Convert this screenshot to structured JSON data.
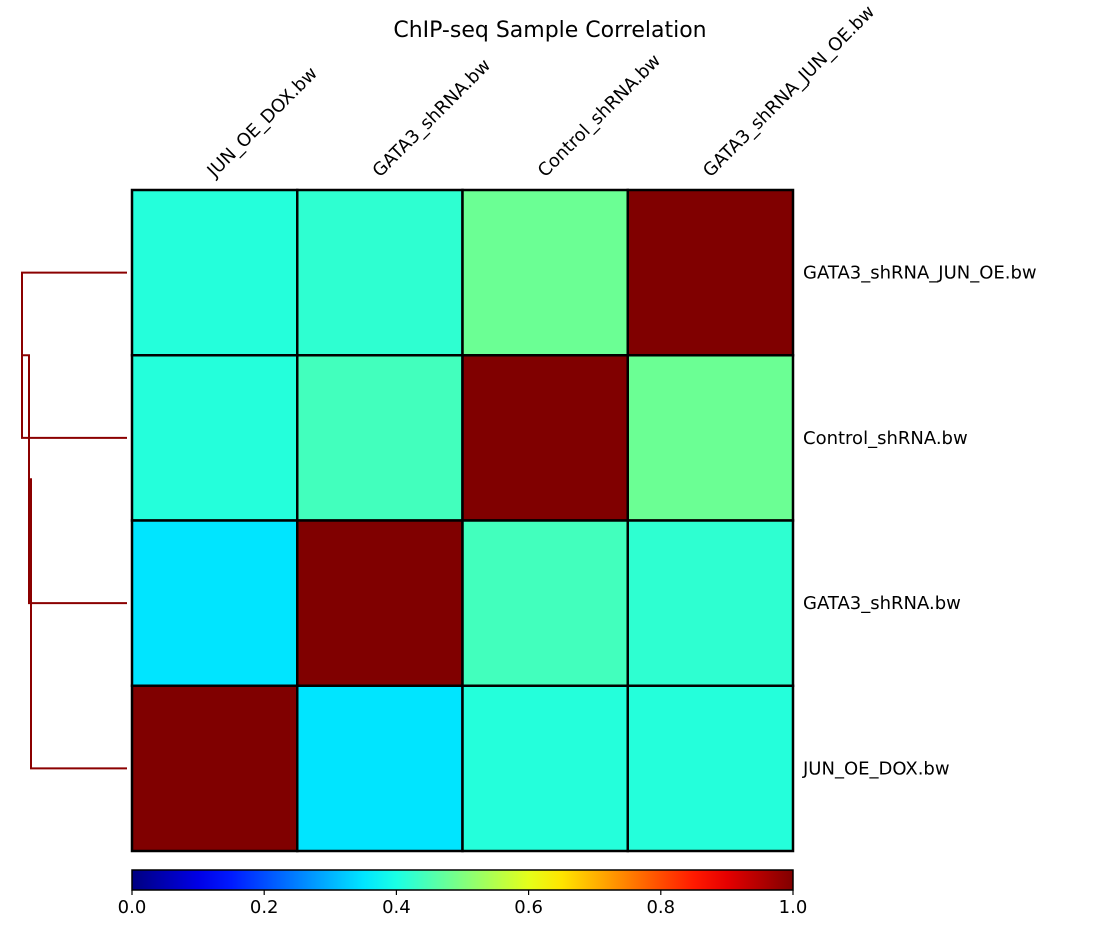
{
  "chart_data": {
    "type": "heatmap",
    "title": "ChIP-seq Sample Correlation",
    "column_labels": [
      "JUN_OE_DOX.bw",
      "GATA3_shRNA.bw",
      "Control_shRNA.bw",
      "GATA3_shRNA_JUN_OE.bw"
    ],
    "row_labels": [
      "GATA3_shRNA_JUN_OE.bw",
      "Control_shRNA.bw",
      "GATA3_shRNA.bw",
      "JUN_OE_DOX.bw"
    ],
    "values": [
      [
        0.41,
        0.42,
        0.48,
        1.0
      ],
      [
        0.41,
        0.44,
        1.0,
        0.48
      ],
      [
        0.35,
        1.0,
        0.44,
        0.42
      ],
      [
        1.0,
        0.35,
        0.41,
        0.41
      ]
    ],
    "colormap": "jet",
    "color_range": [
      0.0,
      1.0
    ],
    "colorbar": {
      "ticks": [
        0.0,
        0.2,
        0.4,
        0.6,
        0.8,
        1.0
      ],
      "tick_labels": [
        "0.0",
        "0.2",
        "0.4",
        "0.6",
        "0.8",
        "1.0"
      ],
      "placement": "bottom"
    },
    "dendrogram": {
      "placement": "left",
      "color": "#8b0000",
      "merges": [
        {
          "rows": [
            0,
            1
          ]
        },
        {
          "rows": [
            "cluster-0-1",
            2
          ]
        },
        {
          "rows": [
            "cluster-0-1-2",
            3
          ]
        }
      ]
    },
    "cell_border_color": "#000000",
    "grid": false
  }
}
